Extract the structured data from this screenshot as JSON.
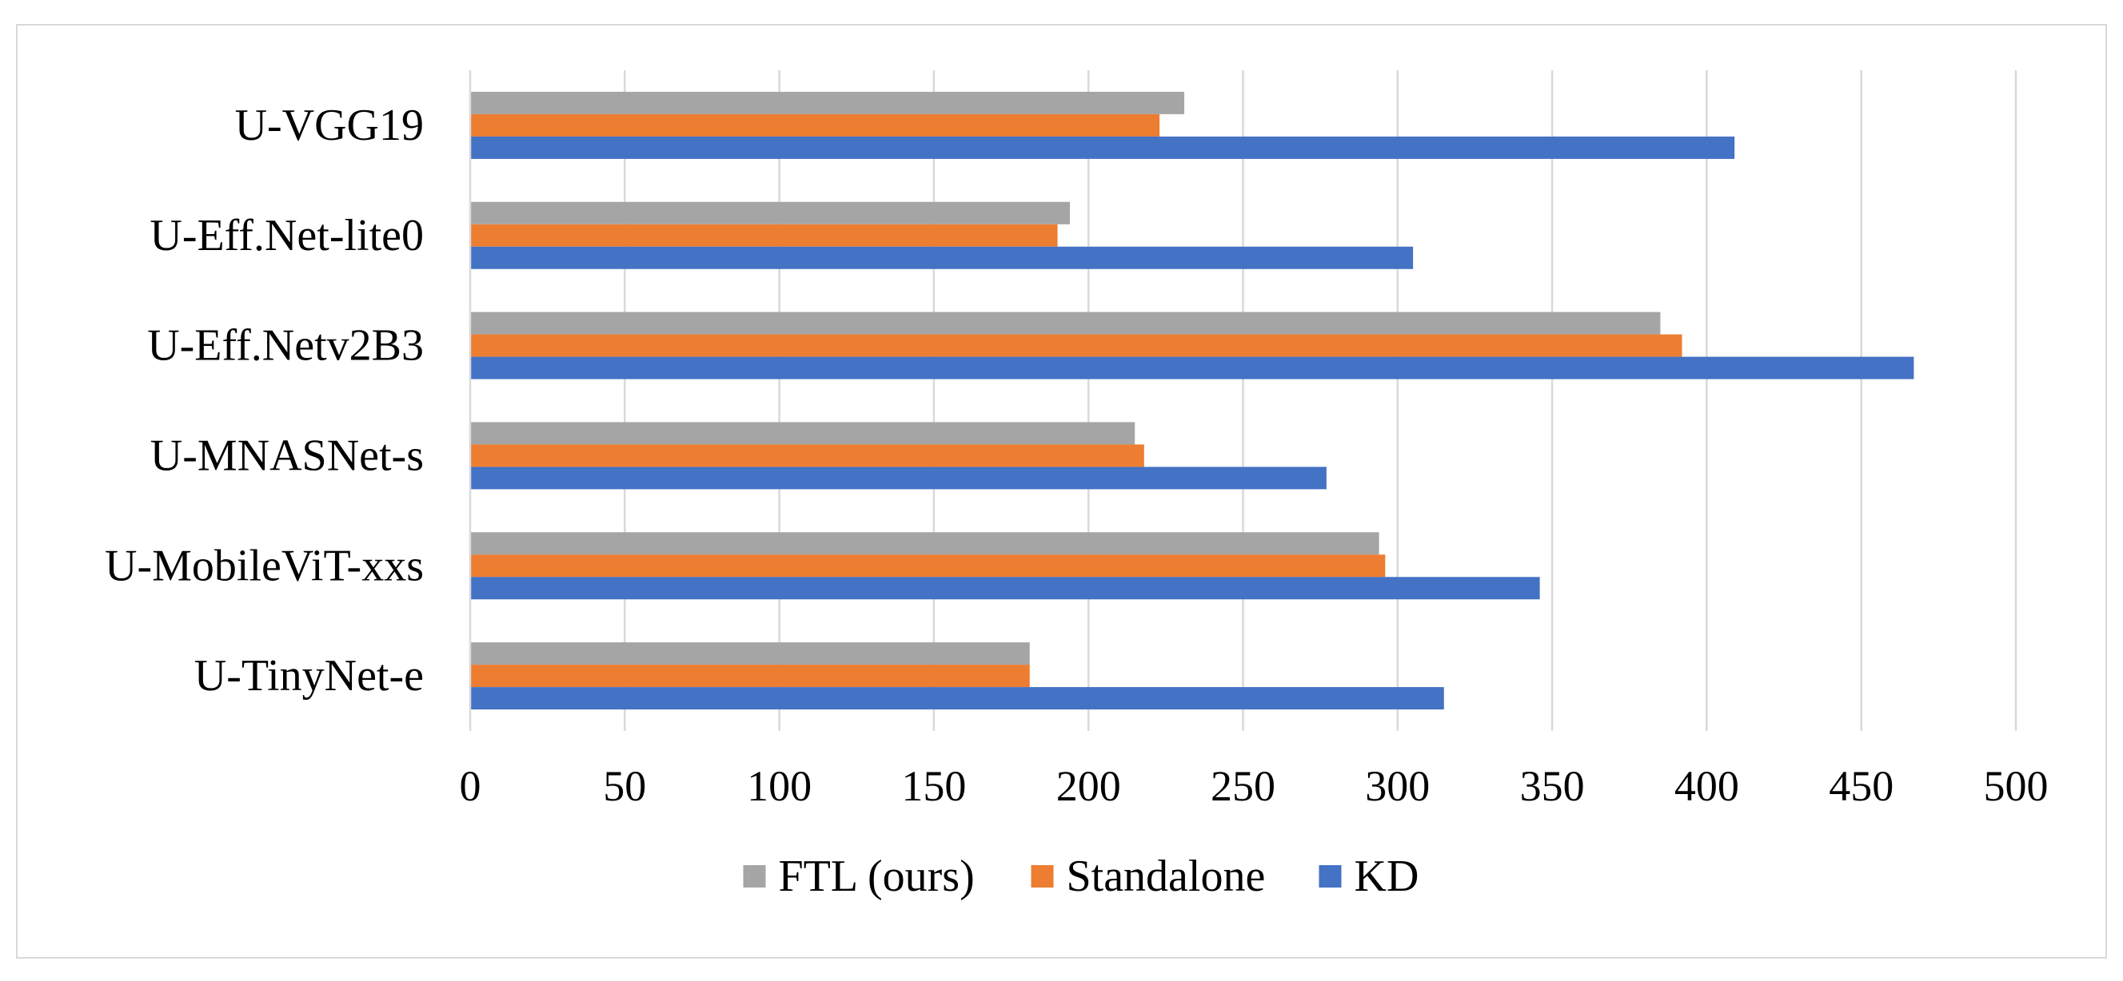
{
  "chart_data": {
    "type": "bar",
    "orientation": "horizontal",
    "title": "",
    "xlabel": "",
    "ylabel": "",
    "xlim": [
      0,
      500
    ],
    "x_ticks": [
      0,
      50,
      100,
      150,
      200,
      250,
      300,
      350,
      400,
      450,
      500
    ],
    "grid": true,
    "legend_position": "bottom",
    "categories": [
      "U-VGG19",
      "U-Eff.Net-lite0",
      "U-Eff.Netv2B3",
      "U-MNASNet-s",
      "U-MobileViT-xxs",
      "U-TinyNet-e"
    ],
    "series": [
      {
        "name": "FTL (ours)",
        "color": "#a5a5a5",
        "values": [
          231,
          194,
          385,
          215,
          294,
          181
        ]
      },
      {
        "name": "Standalone",
        "color": "#ed7d31",
        "values": [
          223,
          190,
          392,
          218,
          296,
          181
        ]
      },
      {
        "name": "KD",
        "color": "#4472c4",
        "values": [
          409,
          305,
          467,
          277,
          346,
          315
        ]
      }
    ]
  }
}
